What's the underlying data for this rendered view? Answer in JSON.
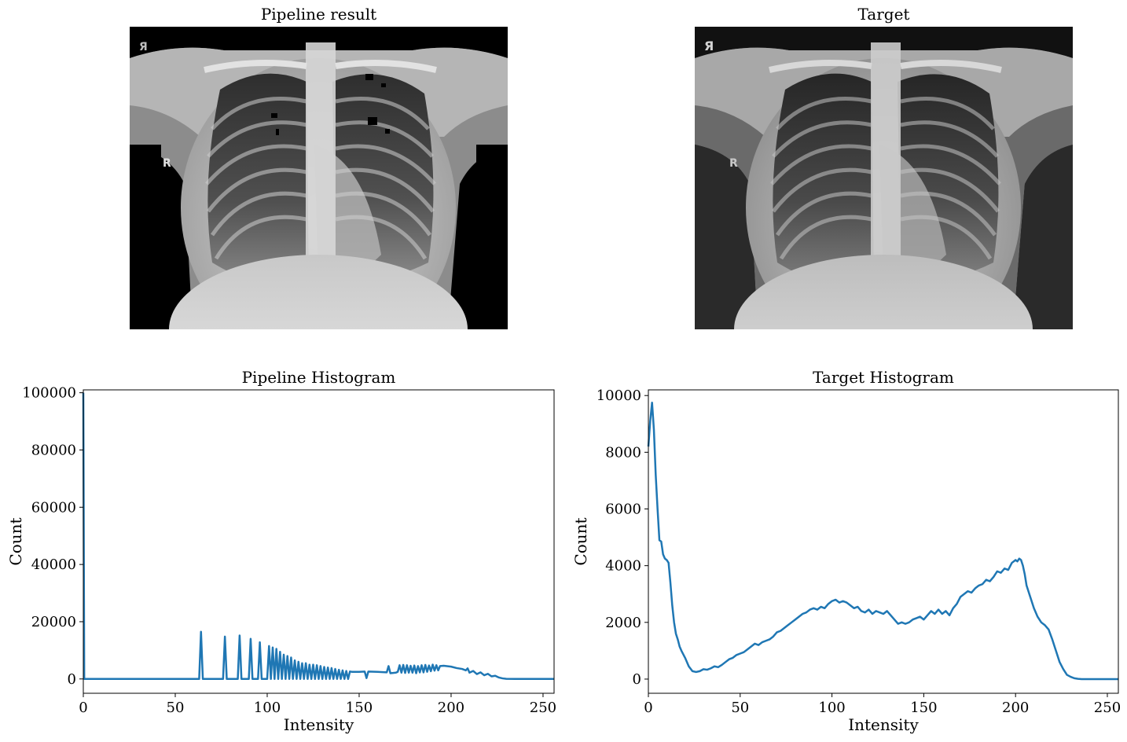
{
  "images": {
    "left_title": "Pipeline result",
    "right_title": "Target",
    "left_marker": "R",
    "right_marker": "R",
    "left_corner_marker": "Я",
    "right_corner_marker": "Я"
  },
  "colors": {
    "line": "#1f77b4",
    "axes": "#000000",
    "background": "#ffffff"
  },
  "chart_data": [
    {
      "type": "line",
      "title": "Pipeline Histogram",
      "xlabel": "Intensity",
      "ylabel": "Count",
      "xlim": [
        0,
        256
      ],
      "ylim": [
        -5000,
        101000
      ],
      "xticks": [
        0,
        50,
        100,
        150,
        200,
        250
      ],
      "yticks": [
        0,
        20000,
        40000,
        60000,
        80000,
        100000
      ],
      "grid": false,
      "series": [
        {
          "x": [
            0,
            0.5,
            1,
            63,
            64,
            65,
            76,
            77,
            78,
            84,
            85,
            86,
            90,
            91,
            92,
            95,
            96,
            97,
            100,
            101,
            102,
            103,
            104,
            105,
            106,
            107,
            108,
            109,
            110,
            111,
            112,
            113,
            114,
            115,
            116,
            117,
            118,
            119,
            120,
            121,
            122,
            123,
            124,
            125,
            126,
            127,
            128,
            129,
            130,
            131,
            132,
            133,
            134,
            135,
            136,
            137,
            138,
            139,
            140,
            141,
            142,
            143,
            144,
            145,
            146,
            150,
            153,
            154,
            155,
            160,
            165,
            166,
            167,
            170,
            171,
            172,
            173,
            174,
            175,
            176,
            177,
            178,
            179,
            180,
            181,
            182,
            183,
            184,
            185,
            186,
            187,
            188,
            189,
            190,
            191,
            192,
            193,
            194,
            196,
            200,
            203,
            206,
            208,
            209,
            210,
            212,
            214,
            216,
            218,
            220,
            222,
            224,
            226,
            228,
            230,
            235,
            240,
            256
          ],
          "values": [
            100000,
            0,
            0,
            0,
            16500,
            0,
            0,
            14800,
            0,
            0,
            15200,
            0,
            0,
            14000,
            0,
            0,
            12800,
            0,
            0,
            11500,
            0,
            11000,
            0,
            10500,
            0,
            9500,
            0,
            8500,
            0,
            8000,
            0,
            7500,
            0,
            6500,
            0,
            6000,
            0,
            5500,
            0,
            5500,
            0,
            5000,
            0,
            5000,
            0,
            4800,
            0,
            4500,
            0,
            4200,
            0,
            4000,
            0,
            3800,
            0,
            3500,
            0,
            3200,
            0,
            3000,
            0,
            2800,
            0,
            2600,
            2500,
            2500,
            2600,
            300,
            2600,
            2500,
            2300,
            4500,
            2000,
            2200,
            2500,
            4800,
            2200,
            4900,
            2100,
            4800,
            2200,
            4600,
            2200,
            4700,
            2000,
            4500,
            2300,
            4800,
            2300,
            4900,
            2500,
            4700,
            2700,
            5000,
            2900,
            4800,
            3000,
            4500,
            4600,
            4300,
            3800,
            3500,
            3000,
            3700,
            2200,
            2800,
            1700,
            2300,
            1300,
            1800,
            900,
            1100,
            500,
            200,
            50,
            0,
            0,
            0
          ]
        }
      ]
    },
    {
      "type": "line",
      "title": "Target Histogram",
      "xlabel": "Intensity",
      "ylabel": "Count",
      "xlim": [
        0,
        256
      ],
      "ylim": [
        -500,
        10200
      ],
      "xticks": [
        0,
        50,
        100,
        150,
        200,
        250
      ],
      "yticks": [
        0,
        2000,
        4000,
        6000,
        8000,
        10000
      ],
      "grid": false,
      "series": [
        {
          "x": [
            0,
            1,
            2,
            3,
            4,
            5,
            6,
            7,
            8,
            9,
            10,
            11,
            12,
            13,
            14,
            15,
            16,
            17,
            18,
            20,
            22,
            24,
            26,
            28,
            30,
            32,
            34,
            36,
            38,
            40,
            42,
            44,
            46,
            48,
            50,
            52,
            54,
            56,
            58,
            60,
            62,
            64,
            66,
            68,
            70,
            72,
            74,
            76,
            78,
            80,
            82,
            84,
            86,
            88,
            90,
            92,
            94,
            96,
            98,
            100,
            102,
            104,
            106,
            108,
            110,
            112,
            114,
            116,
            118,
            120,
            122,
            124,
            126,
            128,
            130,
            132,
            134,
            136,
            138,
            140,
            142,
            144,
            146,
            148,
            150,
            152,
            154,
            156,
            158,
            160,
            162,
            164,
            166,
            168,
            170,
            172,
            174,
            176,
            178,
            180,
            182,
            184,
            186,
            188,
            190,
            192,
            194,
            196,
            198,
            200,
            201,
            202,
            203,
            204,
            205,
            206,
            208,
            210,
            212,
            214,
            216,
            218,
            220,
            222,
            224,
            226,
            228,
            230,
            232,
            234,
            236,
            240,
            245,
            256
          ],
          "values": [
            8200,
            9100,
            9750,
            8800,
            7200,
            6000,
            4900,
            4850,
            4400,
            4250,
            4200,
            4100,
            3400,
            2600,
            2000,
            1600,
            1400,
            1150,
            1000,
            750,
            450,
            280,
            250,
            280,
            350,
            330,
            380,
            450,
            420,
            500,
            600,
            700,
            750,
            850,
            900,
            950,
            1050,
            1150,
            1250,
            1200,
            1300,
            1350,
            1400,
            1500,
            1650,
            1700,
            1800,
            1900,
            2000,
            2100,
            2200,
            2300,
            2350,
            2450,
            2500,
            2450,
            2550,
            2500,
            2650,
            2750,
            2800,
            2700,
            2750,
            2700,
            2600,
            2500,
            2550,
            2400,
            2350,
            2450,
            2300,
            2400,
            2350,
            2300,
            2400,
            2250,
            2100,
            1950,
            2000,
            1950,
            2000,
            2100,
            2150,
            2200,
            2100,
            2250,
            2400,
            2300,
            2450,
            2300,
            2400,
            2250,
            2500,
            2650,
            2900,
            3000,
            3100,
            3050,
            3200,
            3300,
            3350,
            3500,
            3450,
            3600,
            3800,
            3750,
            3900,
            3850,
            4100,
            4200,
            4150,
            4250,
            4200,
            4000,
            3700,
            3300,
            2900,
            2500,
            2200,
            2000,
            1900,
            1750,
            1400,
            1000,
            600,
            350,
            150,
            80,
            30,
            10,
            0,
            0,
            0,
            0
          ]
        }
      ]
    }
  ]
}
